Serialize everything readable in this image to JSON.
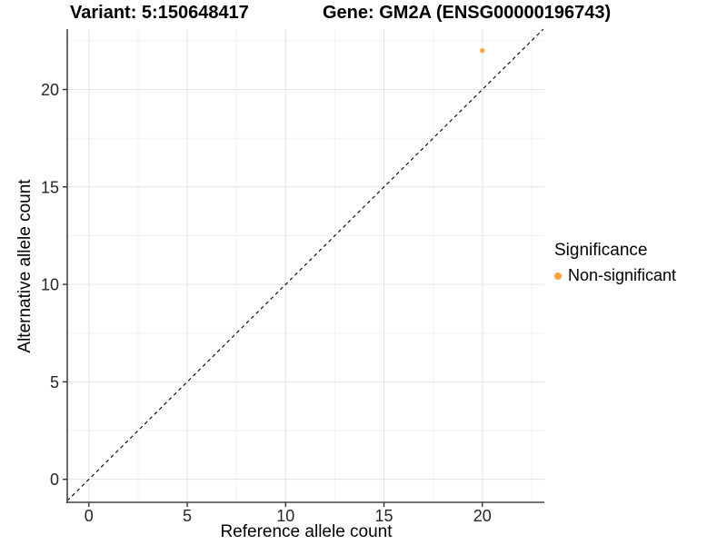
{
  "chart_data": {
    "type": "scatter",
    "titles": {
      "left": "Variant: 5:150648417",
      "right": "Gene: GM2A (ENSG00000196743)"
    },
    "xlabel": "Reference allele count",
    "ylabel": "Alternative allele count",
    "xlim": [
      -1.1,
      23.15
    ],
    "ylim": [
      -1.18,
      23.1
    ],
    "xticks": [
      0,
      5,
      10,
      15,
      20
    ],
    "yticks": [
      0,
      5,
      10,
      15,
      20
    ],
    "minor_gridlines": [
      2.5,
      7.5,
      12.5,
      17.5,
      22.5
    ],
    "grid": "major+minor",
    "series": [
      {
        "name": "Non-significant",
        "color": "#F9A43C",
        "points": [
          {
            "x": 20,
            "y": 22
          }
        ]
      }
    ],
    "reference_line": {
      "type": "identity",
      "equation": "y = x",
      "style": "dashed",
      "color": "#000000"
    },
    "legend": {
      "title": "Significance",
      "position": "right-middle",
      "items": [
        {
          "label": "Non-significant",
          "color": "#F9A43C",
          "marker": "circle"
        }
      ]
    },
    "colors": {
      "axis_line": "#464646",
      "tick_mark": "#333333",
      "tick_label": "#262626",
      "grid_major": "#E3E3E3",
      "grid_minor": "#F1F1F1",
      "background": "#FFFFFF"
    }
  }
}
